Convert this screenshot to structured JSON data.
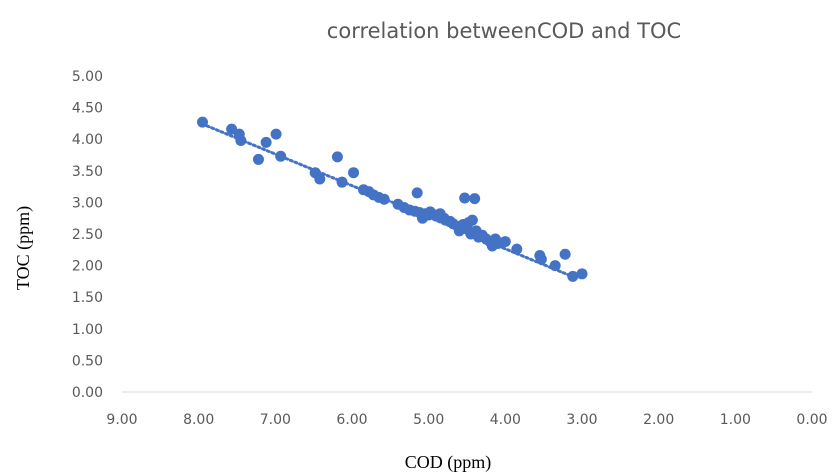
{
  "chart_data": {
    "type": "scatter",
    "title": "correlation betweenCOD and TOC",
    "xlabel": "COD (ppm)",
    "ylabel": "TOC (ppm)",
    "xlim": [
      0,
      9
    ],
    "ylim": [
      0,
      5
    ],
    "x_reversed": true,
    "x_ticks": [
      "9.00",
      "8.00",
      "7.00",
      "6.00",
      "5.00",
      "4.00",
      "3.00",
      "2.00",
      "1.00",
      "0.00"
    ],
    "y_ticks": [
      "0.00",
      "0.50",
      "1.00",
      "1.50",
      "2.00",
      "2.50",
      "3.00",
      "3.50",
      "4.00",
      "4.50",
      "5.00"
    ],
    "grid": false,
    "trendline": {
      "style": "dotted",
      "x": [
        7.95,
        3.15
      ],
      "y": [
        4.24,
        1.84
      ]
    },
    "marker_color": "#4472c4",
    "series": [
      {
        "points": [
          [
            7.95,
            4.27
          ],
          [
            7.57,
            4.16
          ],
          [
            7.47,
            4.08
          ],
          [
            7.45,
            3.98
          ],
          [
            7.22,
            3.68
          ],
          [
            7.12,
            3.95
          ],
          [
            6.99,
            4.08
          ],
          [
            6.93,
            3.73
          ],
          [
            6.48,
            3.47
          ],
          [
            6.42,
            3.37
          ],
          [
            6.19,
            3.72
          ],
          [
            6.13,
            3.32
          ],
          [
            5.98,
            3.47
          ],
          [
            5.85,
            3.2
          ],
          [
            5.78,
            3.17
          ],
          [
            5.72,
            3.12
          ],
          [
            5.65,
            3.08
          ],
          [
            5.58,
            3.05
          ],
          [
            5.4,
            2.97
          ],
          [
            5.32,
            2.92
          ],
          [
            5.25,
            2.88
          ],
          [
            5.18,
            2.86
          ],
          [
            5.15,
            3.15
          ],
          [
            5.12,
            2.84
          ],
          [
            5.08,
            2.75
          ],
          [
            5.05,
            2.82
          ],
          [
            5.0,
            2.8
          ],
          [
            4.98,
            2.85
          ],
          [
            4.92,
            2.8
          ],
          [
            4.88,
            2.78
          ],
          [
            4.85,
            2.82
          ],
          [
            4.8,
            2.75
          ],
          [
            4.78,
            2.72
          ],
          [
            4.72,
            2.7
          ],
          [
            4.68,
            2.66
          ],
          [
            4.62,
            2.62
          ],
          [
            4.6,
            2.55
          ],
          [
            4.55,
            2.65
          ],
          [
            4.53,
            3.07
          ],
          [
            4.5,
            2.58
          ],
          [
            4.48,
            2.68
          ],
          [
            4.45,
            2.5
          ],
          [
            4.43,
            2.72
          ],
          [
            4.4,
            3.06
          ],
          [
            4.38,
            2.55
          ],
          [
            4.35,
            2.45
          ],
          [
            4.3,
            2.48
          ],
          [
            4.25,
            2.42
          ],
          [
            4.2,
            2.38
          ],
          [
            4.17,
            2.31
          ],
          [
            4.13,
            2.42
          ],
          [
            4.1,
            2.35
          ],
          [
            4.05,
            2.36
          ],
          [
            4.0,
            2.38
          ],
          [
            3.85,
            2.26
          ],
          [
            3.55,
            2.16
          ],
          [
            3.53,
            2.1
          ],
          [
            3.35,
            2.0
          ],
          [
            3.22,
            2.18
          ],
          [
            3.12,
            1.83
          ],
          [
            3.0,
            1.87
          ]
        ]
      }
    ]
  }
}
